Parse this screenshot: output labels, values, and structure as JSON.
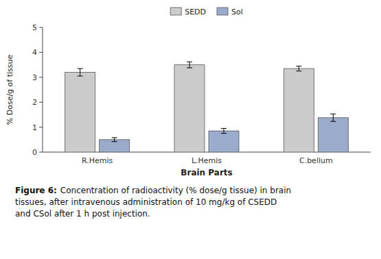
{
  "chart_data": {
    "type": "bar",
    "categories": [
      "R.Hemis",
      "L.Hemis",
      "C.bellum"
    ],
    "series": [
      {
        "name": "SEDD",
        "color": "#cccccc",
        "values": [
          3.2,
          3.5,
          3.35
        ],
        "errors": [
          0.15,
          0.12,
          0.1
        ]
      },
      {
        "name": "Sol",
        "color": "#9aabcc",
        "values": [
          0.5,
          0.85,
          1.38
        ],
        "errors": [
          0.08,
          0.1,
          0.15
        ]
      }
    ],
    "ylabel": "% Dose/g of tissue",
    "xlabel": "Brain Parts",
    "ylim": [
      0,
      5
    ],
    "yticks": [
      0,
      1,
      2,
      3,
      4,
      5
    ],
    "grid": false,
    "legend": "top",
    "annotations": [
      "Figure 6:",
      "Concentration of radioactivity (% dose/g tissue) in brain",
      "tissues, after intravenous administration of 10 mg/kg of CSEDD",
      "and CSol after 1 h post injection."
    ]
  }
}
